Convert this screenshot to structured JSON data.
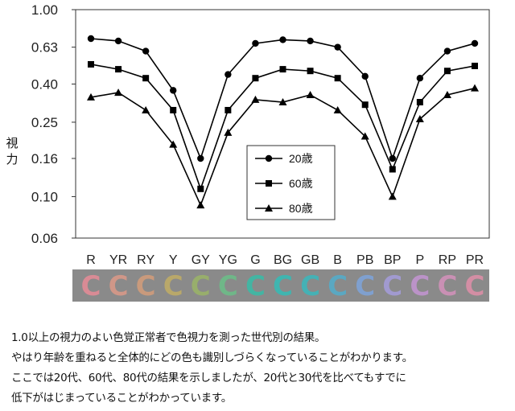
{
  "chart_data": {
    "type": "line",
    "ylabel": "視力",
    "yscale": "log",
    "ylim": [
      0.06,
      1.0
    ],
    "yticks": [
      "1.00",
      "0.63",
      "0.40",
      "0.25",
      "0.16",
      "0.10",
      "0.06"
    ],
    "ytick_values": [
      1.0,
      0.63,
      0.4,
      0.25,
      0.16,
      0.1,
      0.06
    ],
    "categories": [
      "R",
      "YR",
      "RY",
      "Y",
      "GY",
      "YG",
      "G",
      "BG",
      "GB",
      "B",
      "PB",
      "BP",
      "P",
      "RP",
      "PR"
    ],
    "series": [
      {
        "name": "20歳",
        "marker": "circle",
        "values": [
          0.7,
          0.68,
          0.6,
          0.37,
          0.16,
          0.45,
          0.66,
          0.69,
          0.68,
          0.63,
          0.44,
          0.16,
          0.43,
          0.6,
          0.66
        ]
      },
      {
        "name": "60歳",
        "marker": "square",
        "values": [
          0.51,
          0.48,
          0.43,
          0.29,
          0.11,
          0.29,
          0.43,
          0.48,
          0.47,
          0.43,
          0.31,
          0.14,
          0.32,
          0.47,
          0.5
        ]
      },
      {
        "name": "80歳",
        "marker": "triangle",
        "values": [
          0.34,
          0.36,
          0.29,
          0.19,
          0.09,
          0.22,
          0.33,
          0.32,
          0.35,
          0.29,
          0.21,
          0.1,
          0.26,
          0.35,
          0.38
        ]
      }
    ],
    "legend_position": "center",
    "grid": false
  },
  "color_swatches": [
    {
      "label": "R",
      "color": "#d98b95"
    },
    {
      "label": "YR",
      "color": "#d09788"
    },
    {
      "label": "RY",
      "color": "#c99a7c"
    },
    {
      "label": "Y",
      "color": "#b9a86a"
    },
    {
      "label": "GY",
      "color": "#98ae6c"
    },
    {
      "label": "YG",
      "color": "#6fb788"
    },
    {
      "label": "G",
      "color": "#43b5a3"
    },
    {
      "label": "BG",
      "color": "#3fb5b0"
    },
    {
      "label": "GB",
      "color": "#45b1b5"
    },
    {
      "label": "B",
      "color": "#5aa8c2"
    },
    {
      "label": "PB",
      "color": "#7fa0cf"
    },
    {
      "label": "BP",
      "color": "#a19ad0"
    },
    {
      "label": "P",
      "color": "#bb93c8"
    },
    {
      "label": "RP",
      "color": "#c990b4"
    },
    {
      "label": "PR",
      "color": "#d38ea4"
    }
  ],
  "swatch_glyph": "C",
  "swatch_strip_bg": "#8a8a8a",
  "caption": [
    "1.0以上の視力のよい色覚正常者で色視力を測った世代別の結果。",
    "やはり年齢を重ねると全体的にどの色も識別しづらくなっていることがわかります。",
    "ここでは20代、60代、80代の結果を示しましたが、20代と30代を比べてもすでに",
    "低下がはじまっていることがわかっています。"
  ]
}
